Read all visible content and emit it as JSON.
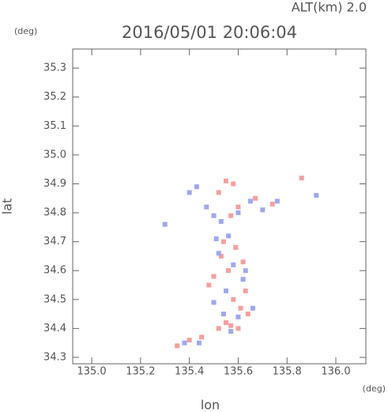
{
  "chart_data": {
    "type": "scatter",
    "title": "2016/05/01 20:06:04",
    "subtitle": "ALT(km) 2.0",
    "y_unit": "(deg)",
    "x_unit": "(deg)",
    "x_label": "lon",
    "y_label": "lat",
    "xlim": [
      134.922,
      136.123
    ],
    "ylim": [
      34.278,
      35.366
    ],
    "xticks": [
      {
        "value": 135,
        "label": "135.0"
      },
      135.2,
      135.4,
      135.6,
      135.8,
      {
        "value": 136,
        "label": "136.0"
      }
    ],
    "yticks": [
      34.3,
      34.4,
      34.5,
      34.6,
      34.7,
      34.8,
      34.9,
      {
        "value": 35,
        "label": "35.0"
      },
      35.1,
      35.2,
      35.3
    ],
    "series": [
      {
        "color": "#f4a0a0",
        "x": [
          135.55,
          135.58,
          135.52,
          135.6,
          135.57,
          135.54,
          135.59,
          135.53,
          135.62,
          135.56,
          135.5,
          135.48,
          135.58,
          135.61,
          135.64,
          135.55,
          135.52,
          135.6,
          135.57,
          135.45,
          135.4,
          135.35,
          135.67,
          135.74,
          135.86,
          135.63
        ],
        "values": [
          34.91,
          34.9,
          34.87,
          34.82,
          34.79,
          34.7,
          34.68,
          34.65,
          34.63,
          34.6,
          34.58,
          34.55,
          34.5,
          34.47,
          34.45,
          34.42,
          34.4,
          34.4,
          34.41,
          34.37,
          34.36,
          34.34,
          34.85,
          34.83,
          34.92,
          34.53
        ]
      },
      {
        "color": "#a0a8f0",
        "x": [
          135.4,
          135.43,
          135.47,
          135.5,
          135.53,
          135.6,
          135.65,
          135.7,
          135.56,
          135.52,
          135.58,
          135.62,
          135.55,
          135.5,
          135.66,
          135.6,
          135.54,
          135.57,
          135.44,
          135.38,
          135.3,
          135.92,
          135.76,
          135.51,
          135.63
        ],
        "values": [
          34.87,
          34.89,
          34.82,
          34.79,
          34.77,
          34.8,
          34.84,
          34.81,
          34.72,
          34.66,
          34.62,
          34.57,
          34.53,
          34.49,
          34.47,
          34.44,
          34.45,
          34.39,
          34.35,
          34.35,
          34.76,
          34.86,
          34.84,
          34.71,
          34.6
        ]
      }
    ]
  }
}
